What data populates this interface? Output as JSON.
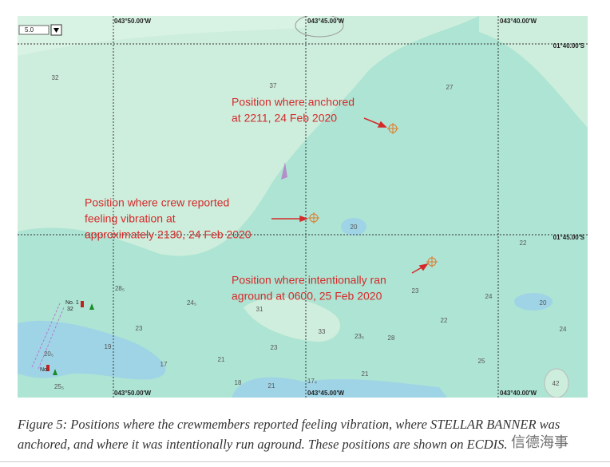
{
  "map": {
    "scale": "5.0",
    "lon_labels_top": [
      "043°50.00'W",
      "043°45.00'W",
      "043°40.00'W"
    ],
    "lon_labels_bottom": [
      "043°50.00'W",
      "043°45.00'W",
      "043°40.00'W"
    ],
    "lat_labels": [
      "01°40.00'S",
      "01°45.00'S"
    ],
    "annotations": [
      {
        "lines": [
          "Position where anchored",
          "at 2211, 24 Feb 2020"
        ]
      },
      {
        "lines": [
          "Position where crew reported",
          "feeling vibration at",
          "approximately 2130, 24 Feb 2020"
        ]
      },
      {
        "lines": [
          "Position where intentionally ran",
          "aground at 0600, 25 Feb 2020"
        ]
      }
    ],
    "soundings": [
      "32",
      "37",
      "27",
      "20",
      "22",
      "28₅",
      "24₅",
      "31",
      "23",
      "24",
      "20",
      "23",
      "19",
      "33",
      "23₅",
      "28",
      "22",
      "24",
      "23",
      "17",
      "21",
      "25",
      "21",
      "18",
      "21",
      "17₄",
      "42",
      "20₅",
      "25₅"
    ],
    "buoy_labels": [
      "No. 1",
      "32",
      "No."
    ]
  },
  "caption": "Figure 5: Positions where the crewmembers reported feeling vibration, where STELLAR BANNER was anchored, and where it was intentionally run aground. These positions are shown on ECDIS.",
  "watermark": "信德海事"
}
